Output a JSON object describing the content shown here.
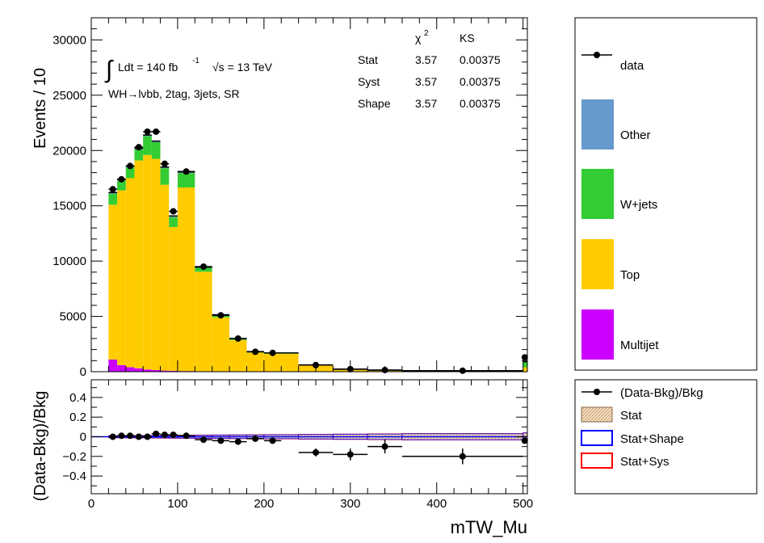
{
  "chart_data": [
    {
      "type": "bar",
      "stacked": true,
      "ylabel": "Events / 10",
      "ylim": [
        0,
        32000
      ],
      "xlim": [
        0,
        505
      ],
      "yticks": [
        0,
        5000,
        10000,
        15000,
        20000,
        25000,
        30000
      ],
      "ytick_labels": [
        "0",
        "5000",
        "10000",
        "15000",
        "20000",
        "25000",
        "30000"
      ],
      "annotations": {
        "lumi_text": "Ldt = 140 fb",
        "lumi_sup": "-1",
        "energy_text": "√s = 13 TeV",
        "region": "WH→lνbb, 2tag, 3jets, SR"
      },
      "stats_table": {
        "header": [
          "",
          "χ",
          "KS"
        ],
        "chi_sup": "2",
        "rows": [
          {
            "label": "Stat",
            "chi2": "3.57",
            "ks": "0.00375"
          },
          {
            "label": "Syst",
            "chi2": "3.57",
            "ks": "0.00375"
          },
          {
            "label": "Shape",
            "chi2": "3.57",
            "ks": "0.00375"
          }
        ]
      },
      "bin_edges": [
        20,
        30,
        40,
        50,
        60,
        70,
        80,
        90,
        100,
        120,
        140,
        160,
        180,
        200,
        240,
        280,
        320,
        360,
        500,
        505
      ],
      "series": [
        {
          "name": "Multijet",
          "color": "#cc00ff",
          "values": [
            1100,
            600,
            400,
            300,
            200,
            150,
            100,
            80,
            60,
            40,
            20,
            10,
            8,
            5,
            3,
            2,
            1,
            1,
            0
          ]
        },
        {
          "name": "Top",
          "color": "#ffcc00",
          "values": [
            14000,
            15800,
            17100,
            18800,
            19400,
            19100,
            16800,
            13000,
            16600,
            9000,
            4900,
            2850,
            1720,
            1620,
            580,
            210,
            130,
            80,
            400
          ]
        },
        {
          "name": "W+jets",
          "color": "#33cc33",
          "values": [
            1000,
            900,
            1000,
            1000,
            1700,
            1500,
            1500,
            900,
            1300,
            350,
            200,
            120,
            70,
            60,
            20,
            8,
            5,
            3,
            500
          ]
        },
        {
          "name": "Other",
          "color": "#6699cc",
          "values": [
            100,
            100,
            100,
            100,
            100,
            100,
            100,
            100,
            100,
            60,
            30,
            20,
            15,
            10,
            7,
            5,
            4,
            2,
            0
          ]
        }
      ],
      "data_points": {
        "name": "data",
        "x": [
          25,
          35,
          45,
          55,
          65,
          75,
          85,
          95,
          110,
          130,
          150,
          170,
          190,
          210,
          260,
          300,
          340,
          430,
          502
        ],
        "xerr": [
          5,
          5,
          5,
          5,
          5,
          5,
          5,
          5,
          10,
          10,
          10,
          10,
          10,
          10,
          20,
          20,
          20,
          70,
          3
        ],
        "y": [
          16500,
          17400,
          18600,
          20300,
          21700,
          21700,
          18800,
          14500,
          18100,
          9500,
          5100,
          3000,
          1800,
          1700,
          600,
          230,
          150,
          90,
          1300
        ]
      }
    },
    {
      "type": "scatter",
      "xlabel": "mTW_Mu",
      "ylabel": "(Data-Bkg)/Bkg",
      "ylim": [
        -0.58,
        0.58
      ],
      "yticks": [
        -0.4,
        -0.2,
        0,
        0.2,
        0.4
      ],
      "ytick_labels": [
        "−0.4",
        "−0.2",
        "0",
        "0.2",
        "0.4"
      ],
      "xticks": [
        0,
        100,
        200,
        300,
        400,
        500
      ],
      "xtick_labels": [
        "0",
        "100",
        "200",
        "300",
        "400",
        "500"
      ],
      "series": [
        {
          "name": "(Data-Bkg)/Bkg",
          "x": [
            25,
            35,
            45,
            55,
            65,
            75,
            85,
            95,
            110,
            130,
            150,
            170,
            190,
            210,
            260,
            300,
            340,
            430,
            502
          ],
          "xerr": [
            5,
            5,
            5,
            5,
            5,
            5,
            5,
            5,
            10,
            10,
            10,
            10,
            10,
            10,
            20,
            20,
            20,
            70,
            3
          ],
          "y": [
            0.0,
            0.01,
            0.01,
            0.0,
            0.0,
            0.03,
            0.02,
            0.02,
            0.01,
            -0.03,
            -0.04,
            -0.05,
            -0.02,
            -0.04,
            -0.16,
            -0.18,
            -0.1,
            -0.2,
            -0.04
          ],
          "yerr": [
            0.01,
            0.01,
            0.01,
            0.01,
            0.01,
            0.01,
            0.01,
            0.01,
            0.01,
            0.01,
            0.015,
            0.02,
            0.02,
            0.025,
            0.04,
            0.06,
            0.07,
            0.08,
            0.03
          ]
        }
      ],
      "bands": {
        "stat_color": "#e8c89e",
        "shape_color": "#0000ff",
        "sys_color": "#ff0000"
      }
    }
  ],
  "legend_main": [
    {
      "label": "data",
      "kind": "marker"
    },
    {
      "label": "Other",
      "kind": "fill",
      "color": "#6699cc"
    },
    {
      "label": "W+jets",
      "kind": "fill",
      "color": "#33cc33"
    },
    {
      "label": "Top",
      "kind": "fill",
      "color": "#ffcc00"
    },
    {
      "label": "Multijet",
      "kind": "fill",
      "color": "#cc00ff"
    }
  ],
  "legend_ratio": [
    {
      "label": "(Data-Bkg)/Bkg",
      "kind": "marker"
    },
    {
      "label": "Stat",
      "kind": "hatch",
      "color": "#e8c89e"
    },
    {
      "label": "Stat+Shape",
      "kind": "box",
      "color": "#0000ff"
    },
    {
      "label": "Stat+Sys",
      "kind": "box",
      "color": "#ff0000"
    }
  ]
}
